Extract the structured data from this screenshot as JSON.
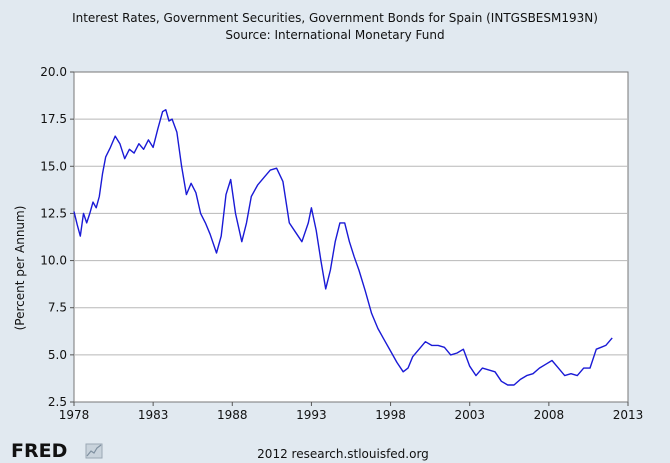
{
  "chart_data": {
    "type": "line",
    "title": "Interest Rates, Government Securities, Government Bonds for Spain (INTGSBESM193N)",
    "subtitle": "Source: International Monetary Fund",
    "xlabel": "",
    "ylabel": "(Percent per Annum)",
    "xlim": [
      1978,
      2013
    ],
    "ylim": [
      2.5,
      20.0
    ],
    "x_ticks": [
      "1978",
      "1983",
      "1988",
      "1993",
      "1998",
      "2003",
      "2008",
      "2013"
    ],
    "y_ticks": [
      "2.5",
      "5.0",
      "7.5",
      "10.0",
      "12.5",
      "15.0",
      "17.5",
      "20.0"
    ],
    "grid": true,
    "line_color": "#1a1ad6",
    "series": [
      {
        "x": [
          1978.0,
          1978.2,
          1978.4,
          1978.6,
          1978.8,
          1979.0,
          1979.2,
          1979.4,
          1979.6,
          1979.8,
          1980.0,
          1980.3,
          1980.6,
          1980.9,
          1981.2,
          1981.5,
          1981.8,
          1982.1,
          1982.4,
          1982.7,
          1983.0,
          1983.3,
          1983.6,
          1983.8,
          1984.0,
          1984.2,
          1984.5,
          1984.8,
          1985.1,
          1985.4,
          1985.7,
          1986.0,
          1986.3,
          1986.6,
          1987.0,
          1987.3,
          1987.6,
          1987.9,
          1988.2,
          1988.6,
          1988.9,
          1989.2,
          1989.6,
          1990.0,
          1990.4,
          1990.8,
          1991.2,
          1991.6,
          1992.0,
          1992.4,
          1992.8,
          1993.0,
          1993.3,
          1993.6,
          1993.9,
          1994.2,
          1994.5,
          1994.8,
          1995.1,
          1995.4,
          1995.7,
          1996.0,
          1996.4,
          1996.8,
          1997.2,
          1997.6,
          1998.0,
          1998.4,
          1998.8,
          1999.1,
          1999.4,
          1999.8,
          2000.2,
          2000.6,
          2001.0,
          2001.4,
          2001.8,
          2002.2,
          2002.6,
          2003.0,
          2003.4,
          2003.8,
          2004.2,
          2004.6,
          2005.0,
          2005.4,
          2005.8,
          2006.2,
          2006.6,
          2007.0,
          2007.4,
          2007.8,
          2008.2,
          2008.6,
          2009.0,
          2009.4,
          2009.8,
          2010.2,
          2010.6,
          2011.0,
          2011.3,
          2011.6,
          2011.8,
          2012.0
        ],
        "y": [
          12.6,
          11.9,
          11.3,
          12.5,
          12.0,
          12.5,
          13.1,
          12.8,
          13.4,
          14.6,
          15.5,
          16.0,
          16.6,
          16.2,
          15.4,
          15.9,
          15.7,
          16.2,
          15.9,
          16.4,
          16.0,
          17.0,
          17.9,
          18.0,
          17.4,
          17.5,
          16.8,
          15.0,
          13.5,
          14.1,
          13.6,
          12.5,
          12.0,
          11.4,
          10.4,
          11.3,
          13.5,
          14.3,
          12.5,
          11.0,
          12.0,
          13.4,
          14.0,
          14.4,
          14.8,
          14.9,
          14.2,
          12.0,
          11.5,
          11.0,
          12.0,
          12.8,
          11.6,
          10.0,
          8.5,
          9.5,
          11.0,
          12.0,
          12.0,
          11.0,
          10.2,
          9.5,
          8.4,
          7.2,
          6.4,
          5.8,
          5.2,
          4.6,
          4.1,
          4.3,
          4.9,
          5.3,
          5.7,
          5.5,
          5.5,
          5.4,
          5.0,
          5.1,
          5.3,
          4.4,
          3.9,
          4.3,
          4.2,
          4.1,
          3.6,
          3.4,
          3.4,
          3.7,
          3.9,
          4.0,
          4.3,
          4.5,
          4.7,
          4.3,
          3.9,
          4.0,
          3.9,
          4.3,
          4.3,
          5.3,
          5.4,
          5.5,
          5.7,
          5.9
        ]
      }
    ]
  },
  "footer": {
    "logo_text": "FRED",
    "credit": "2012 research.stlouisfed.org"
  }
}
